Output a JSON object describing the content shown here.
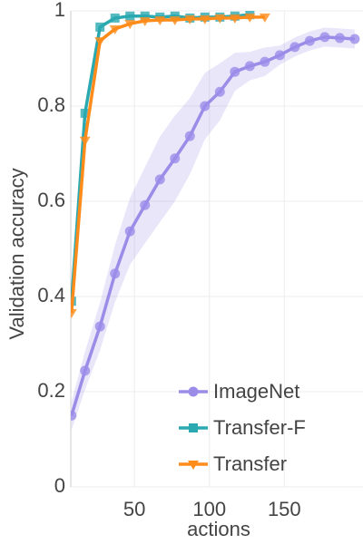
{
  "chart_data": {
    "type": "line",
    "xlabel": "actions",
    "ylabel": "Validation accuracy",
    "xlim": [
      7.5,
      202.5
    ],
    "xticks": [
      50,
      100,
      150
    ],
    "ylim": [
      0,
      1
    ],
    "yticks": [
      0,
      0.2,
      0.4,
      0.6,
      0.8,
      1
    ],
    "grid": true,
    "legend": "lower right",
    "series": [
      {
        "name": "ImageNet",
        "color": "#9b8ce8",
        "marker": "circle",
        "x": [
          8,
          17,
          27,
          37,
          47,
          57,
          67,
          77,
          87,
          97,
          107,
          117,
          127,
          137,
          147,
          157,
          167,
          177,
          187,
          197
        ],
        "values": [
          0.15,
          0.244,
          0.337,
          0.448,
          0.537,
          0.592,
          0.646,
          0.69,
          0.737,
          0.8,
          0.83,
          0.872,
          0.884,
          0.893,
          0.907,
          0.924,
          0.937,
          0.945,
          0.943,
          0.941
        ],
        "lower": [
          0.12,
          0.204,
          0.287,
          0.388,
          0.467,
          0.512,
          0.556,
          0.6,
          0.657,
          0.73,
          0.77,
          0.832,
          0.854,
          0.863,
          0.887,
          0.904,
          0.917,
          0.925,
          0.923,
          0.921
        ],
        "upper": [
          0.18,
          0.284,
          0.387,
          0.508,
          0.607,
          0.672,
          0.736,
          0.78,
          0.817,
          0.87,
          0.89,
          0.912,
          0.914,
          0.923,
          0.927,
          0.944,
          0.957,
          0.965,
          0.963,
          0.961
        ]
      },
      {
        "name": "Transfer-F",
        "color": "#2aa9b0",
        "marker": "square",
        "x": [
          8,
          17,
          27,
          37,
          47,
          57,
          67,
          77,
          87,
          97,
          107,
          117,
          127
        ],
        "values": [
          0.39,
          0.785,
          0.966,
          0.985,
          0.989,
          0.989,
          0.987,
          0.989,
          0.985,
          0.987,
          0.987,
          0.989,
          0.992
        ]
      },
      {
        "name": "Transfer",
        "color": "#ff8c1a",
        "marker": "triangle",
        "x": [
          8,
          17,
          27,
          37,
          47,
          57,
          67,
          77,
          87,
          97,
          107,
          117,
          127,
          137
        ],
        "values": [
          0.366,
          0.728,
          0.937,
          0.962,
          0.973,
          0.979,
          0.981,
          0.981,
          0.983,
          0.983,
          0.985,
          0.985,
          0.987,
          0.987
        ]
      }
    ]
  }
}
